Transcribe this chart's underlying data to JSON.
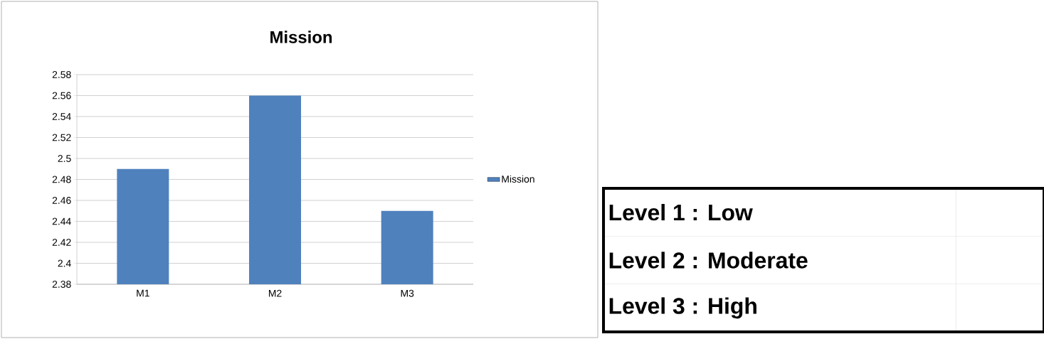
{
  "chart_data": [
    {
      "type": "bar",
      "title": "Mission",
      "categories": [
        "M1",
        "M2",
        "M3"
      ],
      "series": [
        {
          "name": "Mission",
          "color": "#4f81bd",
          "values": [
            2.49,
            2.56,
            2.45
          ]
        }
      ],
      "ylim": [
        2.38,
        2.58
      ],
      "yticks": [
        2.38,
        2.4,
        2.42,
        2.44,
        2.46,
        2.48,
        2.5,
        2.52,
        2.54,
        2.56,
        2.58
      ],
      "grid": "y",
      "legend": "right"
    },
    {
      "type": "other",
      "annotations": [
        "Level 1 : Low",
        "Level 2 : Moderate",
        "Level 3 : High"
      ]
    }
  ]
}
